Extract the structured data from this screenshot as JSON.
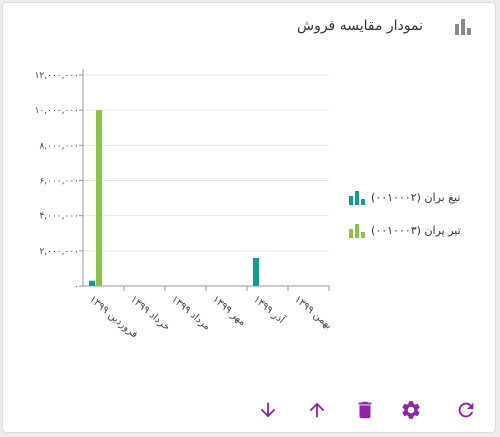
{
  "widget": {
    "title": "نمودار مقایسه فروش",
    "header_icon": "bar-chart-icon"
  },
  "colors": {
    "series1": "#129e8e",
    "series2": "#8bc34a",
    "action": "#8e24aa",
    "axis": "#999999",
    "grid": "#e6e6e6"
  },
  "toolbar": [
    {
      "name": "refresh-icon"
    },
    {
      "name": "settings-gear-icon"
    },
    {
      "name": "delete-icon"
    },
    {
      "name": "arrow-up-icon"
    },
    {
      "name": "arrow-down-icon"
    }
  ],
  "chart_data": {
    "type": "bar",
    "categories": [
      "فروردین ۱۳۹۹",
      "خرداد ۱۳۹۹",
      "مرداد ۱۳۹۹",
      "مهر ۱۳۹۹",
      "آذر ۱۳۹۹",
      "بهمن ۱۳۹۹"
    ],
    "series": [
      {
        "name": "تیغ بران (۰۰۱۰۰۰۲)",
        "values": [
          300000,
          0,
          0,
          0,
          1600000,
          0
        ]
      },
      {
        "name": "تیر پران (۰۰۱۰۰۰۳)",
        "values": [
          10000000,
          0,
          0,
          0,
          0,
          0
        ]
      }
    ],
    "yticks": [
      "۰",
      "۲,۰۰۰,۰۰۰",
      "۴,۰۰۰,۰۰۰",
      "۶,۰۰۰,۰۰۰",
      "۸,۰۰۰,۰۰۰",
      "۱۰,۰۰۰,۰۰۰",
      "۱۲,۰۰۰,۰۰۰"
    ],
    "ylim": [
      0,
      12000000
    ],
    "grid": true,
    "legend": "right"
  }
}
